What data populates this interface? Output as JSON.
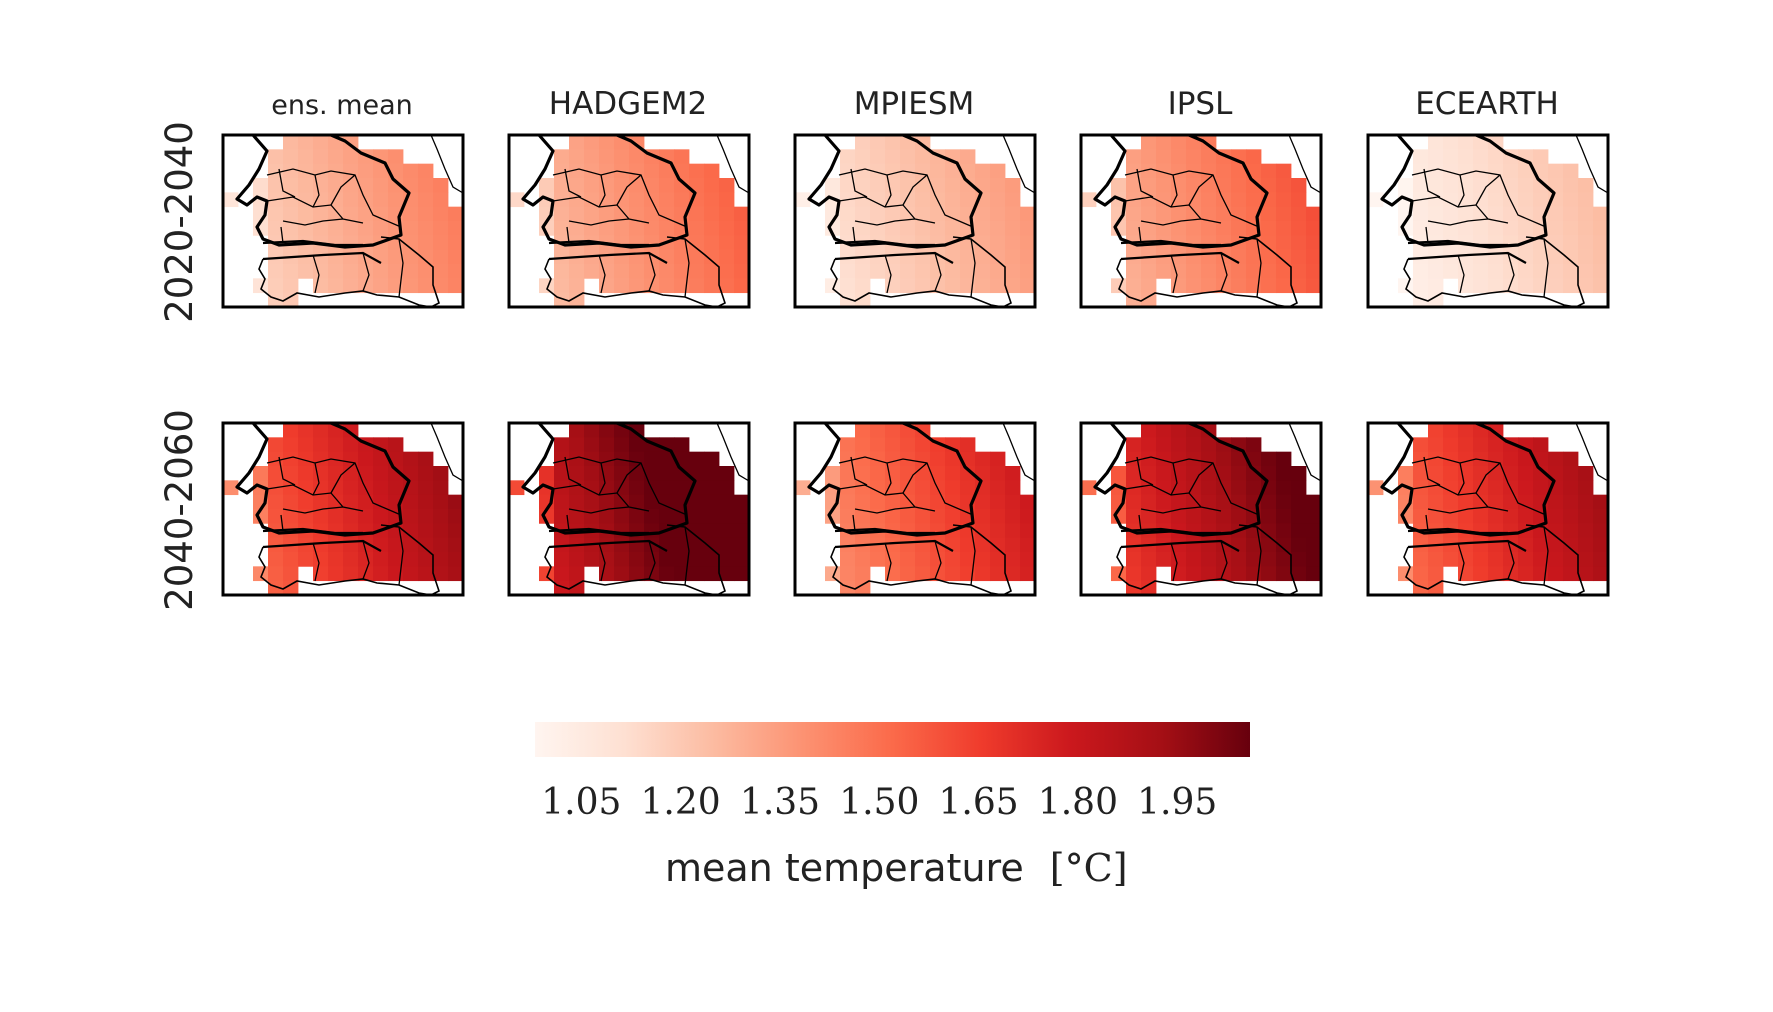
{
  "chart_data": {
    "type": "heatmap",
    "columns": [
      "ens.  mean",
      "HADGEM2",
      "MPIESM",
      "IPSL",
      "ECEARTH"
    ],
    "rows": [
      "2020-2040",
      "2040-2060"
    ],
    "colormap": "Reds",
    "colorbar": {
      "ticks": [
        "1.05",
        "1.20",
        "1.35",
        "1.50",
        "1.65",
        "1.80",
        "1.95"
      ],
      "range": [
        0.98,
        2.06
      ],
      "label": "mean temperature",
      "unit": "[°C]",
      "colors": [
        "#fff5f0",
        "#fee0d2",
        "#fcbba1",
        "#fc9272",
        "#fb6a4a",
        "#ef3b2c",
        "#cb181d",
        "#a50f15",
        "#67000d"
      ]
    },
    "panel_mean_values": [
      [
        1.3,
        1.38,
        1.22,
        1.42,
        1.12
      ],
      [
        1.72,
        2.0,
        1.58,
        1.86,
        1.7
      ]
    ]
  }
}
